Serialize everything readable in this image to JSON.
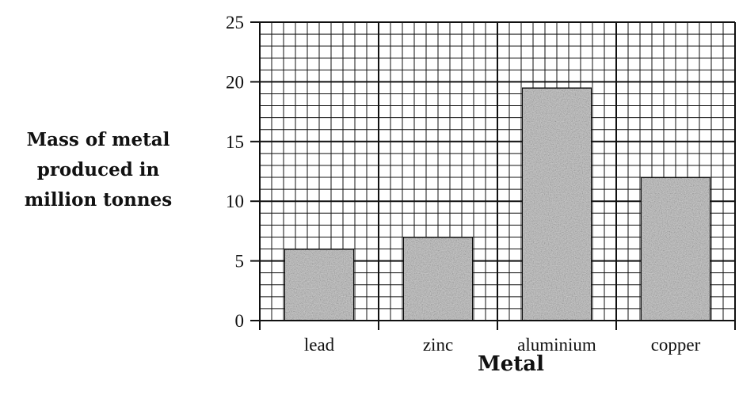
{
  "chart_data": {
    "type": "bar",
    "categories": [
      "lead",
      "zinc",
      "aluminium",
      "copper"
    ],
    "values": [
      6,
      7,
      19.5,
      12
    ],
    "title": "",
    "xlabel": "Metal",
    "ylabel_lines": [
      "Mass of metal",
      "produced in",
      "million tonnes"
    ],
    "ylim": [
      0,
      25
    ],
    "yticks": [
      "0",
      "5",
      "10",
      "15",
      "20",
      "25"
    ],
    "grid": true,
    "bar_fill": "#c9c9c9"
  }
}
